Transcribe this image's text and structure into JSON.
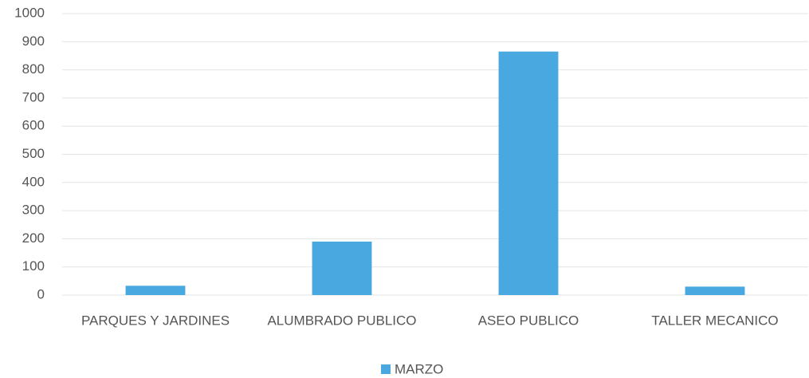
{
  "chart_data": {
    "type": "bar",
    "categories": [
      "PARQUES Y JARDINES",
      "ALUMBRADO PUBLICO",
      "ASEO PUBLICO",
      "TALLER MECANICO"
    ],
    "series": [
      {
        "name": "MARZO",
        "color": "#4aa8e0",
        "values": [
          33,
          190,
          865,
          30
        ]
      }
    ],
    "ylim": [
      0,
      1000
    ],
    "yticks": [
      0,
      100,
      200,
      300,
      400,
      500,
      600,
      700,
      800,
      900,
      1000
    ],
    "grid": true,
    "legend": "bottom"
  }
}
